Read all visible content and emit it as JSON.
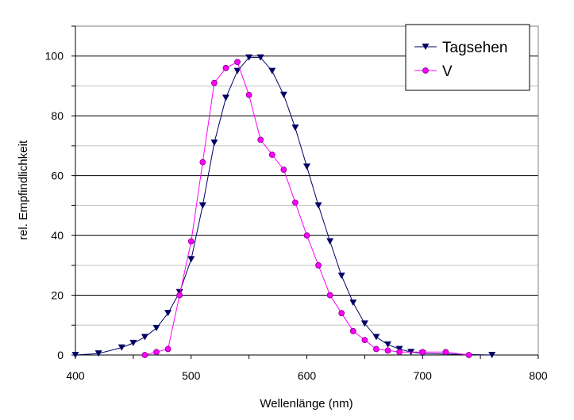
{
  "chart_data": {
    "type": "line",
    "xlabel": "Wellenlänge (nm)",
    "ylabel": "rel. Empfindlichkeit",
    "xlim": [
      400,
      800
    ],
    "ylim": [
      0,
      110
    ],
    "x_ticks": [
      "400",
      "500",
      "600",
      "700",
      "800"
    ],
    "y_ticks": [
      "0",
      "20",
      "40",
      "60",
      "80",
      "100"
    ],
    "grid": "horizontal major and minor",
    "legend_position": "top-right",
    "series": [
      {
        "name": "Tagsehen",
        "color": "#000066",
        "marker": "triangle-down",
        "x": [
          400,
          420,
          440,
          450,
          460,
          470,
          480,
          490,
          500,
          510,
          520,
          530,
          540,
          550,
          560,
          570,
          580,
          590,
          600,
          610,
          620,
          630,
          640,
          650,
          660,
          670,
          680,
          690,
          700,
          760
        ],
        "y": [
          0,
          0.5,
          2.5,
          4,
          6,
          9,
          14,
          21,
          32,
          50,
          71,
          86,
          95,
          99.5,
          99.5,
          95,
          87,
          76,
          63,
          50,
          38,
          26.5,
          17.5,
          10.5,
          6,
          3.5,
          2,
          1,
          0.5,
          0
        ]
      },
      {
        "name": "V",
        "color": "#ff00ff",
        "marker": "circle",
        "x": [
          460,
          470,
          480,
          490,
          500,
          510,
          520,
          530,
          540,
          550,
          560,
          570,
          580,
          590,
          600,
          610,
          620,
          630,
          640,
          650,
          660,
          670,
          680,
          700,
          720,
          740
        ],
        "y": [
          0,
          1,
          2,
          20,
          38,
          64.5,
          91,
          96,
          98,
          87,
          72,
          67,
          62,
          51,
          40,
          30,
          20,
          14,
          8,
          5,
          2,
          1.5,
          1,
          1,
          1,
          0
        ]
      }
    ]
  }
}
